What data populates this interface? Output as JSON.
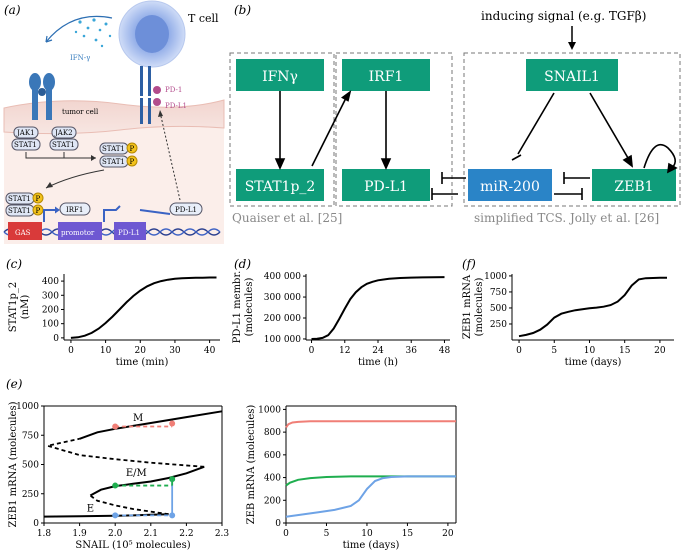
{
  "panels": {
    "a": {
      "label": "(a)",
      "t_cell": "T cell",
      "ifn": "IFN-γ",
      "tumor_cell": "tumor cell",
      "pd1": "PD-1",
      "pdl1": "PD-L1",
      "jak1": "JAK1",
      "jak2": "JAK2",
      "stat1": "STAT1",
      "p": "P",
      "gas": "GAS",
      "irf1": "IRF1",
      "promotor": "promotor",
      "pdl1_gene": "PD-L1",
      "pdl1_mrna": "PD-L1"
    },
    "b": {
      "label": "(b)",
      "inducing": "inducing signal (e.g. TGFβ)",
      "nodes": {
        "ifng": "IFNγ",
        "stat1p": "STAT1p_2",
        "irf1": "IRF1",
        "pdl1": "PD-L1",
        "snail1": "SNAIL1",
        "mir200": "miR-200",
        "zeb1": "ZEB1"
      },
      "caption_left": "Quaiser et al. [25]",
      "caption_right": "simplified TCS. Jolly et al. [26]",
      "colors": {
        "node": "#0f9c7a",
        "mir_node": "#2a84c7"
      }
    }
  },
  "charts": {
    "c": {
      "label": "(c)",
      "ylabel_1": "STAT1p_2",
      "ylabel_2": "(nM)",
      "xlabel": "time (min)",
      "xticks": [
        "0",
        "10",
        "20",
        "30",
        "40"
      ],
      "yticks": [
        "0",
        "100",
        "200",
        "300",
        "400"
      ]
    },
    "d": {
      "label": "(d)",
      "ylabel_1": "PD-L1 membr.",
      "ylabel_2": "(molecules)",
      "xlabel": "time (h)",
      "xticks": [
        "0",
        "12",
        "24",
        "36",
        "48"
      ],
      "yticks": [
        "100 000",
        "200 000",
        "300 000",
        "400 000"
      ]
    },
    "f": {
      "label": "(f)",
      "ylabel_1": "ZEB1 mRNA",
      "ylabel_2": "(molecules)",
      "xlabel": "time (days)",
      "xticks": [
        "0",
        "5",
        "10",
        "15",
        "20"
      ],
      "yticks": [
        "250",
        "500",
        "750",
        "1000"
      ]
    },
    "e1": {
      "label": "(e)",
      "ylabel": "ZEB1 mRNA (molecules)",
      "xlabel": "SNAIL (10⁵ molecules)",
      "xticks": [
        "1.8",
        "1.9",
        "2.0",
        "2.1",
        "2.2",
        "2.3"
      ],
      "yticks": [
        "0",
        "250",
        "500",
        "750",
        "1000"
      ],
      "ann_m": "M",
      "ann_em": "E/M",
      "ann_e": "E"
    },
    "e2": {
      "ylabel": "ZEB mRNA (molecules)",
      "xlabel": "time (days)",
      "xticks": [
        "0",
        "5",
        "10",
        "15",
        "20"
      ],
      "yticks": [
        "0",
        "200",
        "400",
        "600",
        "800",
        "1000"
      ]
    }
  },
  "chart_data": [
    {
      "type": "line",
      "panel": "c",
      "xlabel": "time (min)",
      "ylabel": "STAT1p_2 (nM)",
      "series": [
        {
          "x": [
            0,
            2,
            4,
            6,
            8,
            10,
            12,
            14,
            16,
            18,
            20,
            22,
            24,
            26,
            28,
            30,
            32,
            34,
            36,
            38,
            40,
            42
          ],
          "values": [
            0,
            4,
            15,
            35,
            65,
            105,
            150,
            200,
            250,
            295,
            333,
            363,
            385,
            400,
            410,
            416,
            420,
            422,
            423,
            424,
            425,
            425
          ]
        }
      ],
      "xlim": [
        -2,
        43
      ],
      "ylim": [
        -15,
        450
      ]
    },
    {
      "type": "line",
      "panel": "d",
      "xlabel": "time (h)",
      "ylabel": "PD-L1 membr. (molecules)",
      "series": [
        {
          "x": [
            0,
            2,
            4,
            6,
            8,
            10,
            12,
            14,
            16,
            18,
            20,
            22,
            24,
            28,
            32,
            36,
            40,
            44,
            48
          ],
          "values": [
            100000,
            101000,
            105000,
            118000,
            150000,
            195000,
            245000,
            290000,
            323000,
            347000,
            363000,
            373000,
            380000,
            387000,
            391000,
            393000,
            394000,
            394500,
            395000
          ]
        }
      ],
      "xlim": [
        -2,
        50
      ],
      "ylim": [
        95000,
        410000
      ]
    },
    {
      "type": "line",
      "panel": "f",
      "xlabel": "time (days)",
      "ylabel": "ZEB1 mRNA (molecules)",
      "series": [
        {
          "x": [
            0,
            1,
            2,
            3,
            4,
            5,
            6,
            7,
            8,
            9,
            10,
            11,
            12,
            13,
            14,
            15,
            16,
            17,
            18,
            19,
            20,
            21
          ],
          "values": [
            60,
            80,
            110,
            160,
            240,
            350,
            410,
            440,
            465,
            480,
            495,
            505,
            520,
            545,
            600,
            700,
            850,
            945,
            965,
            968,
            970,
            970
          ]
        }
      ],
      "xlim": [
        -1,
        22
      ],
      "ylim": [
        0,
        1030
      ]
    },
    {
      "type": "line",
      "panel": "e-left",
      "xlabel": "SNAIL (10⁵ molecules)",
      "ylabel": "ZEB1 mRNA (molecules)",
      "series": [
        {
          "style": "solid",
          "x": [
            1.8,
            1.9,
            1.95,
            2.0,
            2.05,
            2.1,
            2.15
          ],
          "values": [
            55,
            57,
            60,
            62,
            65,
            70,
            75
          ]
        },
        {
          "style": "dashed",
          "x": [
            2.15,
            2.05,
            2.0,
            1.95,
            1.93
          ],
          "values": [
            75,
            120,
            150,
            190,
            235
          ]
        },
        {
          "style": "solid",
          "x": [
            1.93,
            1.96,
            2.0,
            2.05,
            2.1,
            2.15,
            2.2,
            2.25
          ],
          "values": [
            235,
            285,
            315,
            335,
            355,
            385,
            425,
            480
          ]
        },
        {
          "style": "dashed",
          "x": [
            2.25,
            2.1,
            2.0,
            1.9,
            1.81,
            1.9
          ],
          "values": [
            480,
            515,
            545,
            580,
            660,
            720
          ]
        },
        {
          "style": "solid",
          "x": [
            1.9,
            1.95,
            2.0,
            2.1,
            2.2,
            2.3
          ],
          "values": [
            720,
            775,
            805,
            855,
            905,
            955
          ]
        }
      ],
      "markers": [
        {
          "x": 2.0,
          "y": 825,
          "color": "#f07f77"
        },
        {
          "x": 2.16,
          "y": 850,
          "color": "#f07f77"
        },
        {
          "x": 2.0,
          "y": 320,
          "color": "#1fae4f"
        },
        {
          "x": 2.16,
          "y": 375,
          "color": "#1fae4f"
        },
        {
          "x": 2.0,
          "y": 65,
          "color": "#6ea3e6"
        },
        {
          "x": 2.16,
          "y": 65,
          "color": "#6ea3e6"
        }
      ],
      "xlim": [
        1.8,
        2.3
      ],
      "ylim": [
        0,
        1000
      ]
    },
    {
      "type": "line",
      "panel": "e-right",
      "xlabel": "time (days)",
      "ylabel": "ZEB mRNA (molecules)",
      "series": [
        {
          "color": "#f07f77",
          "x": [
            0,
            0.3,
            0.8,
            1.5,
            3,
            21
          ],
          "values": [
            840,
            870,
            885,
            890,
            895,
            895
          ]
        },
        {
          "color": "#1fae4f",
          "x": [
            0,
            0.5,
            1.5,
            3,
            5,
            8,
            21
          ],
          "values": [
            330,
            355,
            380,
            395,
            405,
            410,
            410
          ]
        },
        {
          "color": "#6ea3e6",
          "x": [
            0,
            2,
            4,
            6,
            8,
            9,
            10,
            11,
            12,
            13,
            15,
            17,
            21
          ],
          "values": [
            55,
            75,
            95,
            115,
            150,
            200,
            300,
            370,
            395,
            405,
            410,
            410,
            410
          ]
        }
      ],
      "xlim": [
        0,
        21
      ],
      "ylim": [
        0,
        1030
      ]
    }
  ]
}
